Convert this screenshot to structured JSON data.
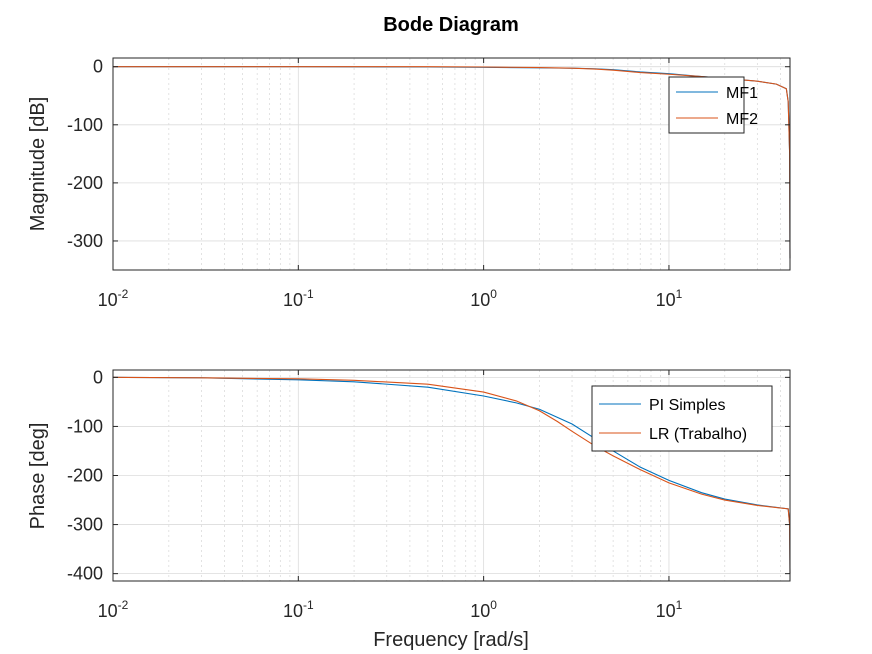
{
  "title": "Bode Diagram",
  "colors": {
    "series1": "#0072BD",
    "series2": "#D95319",
    "grid": "#dcdcdc",
    "axis": "#262626"
  },
  "chart_data": [
    {
      "type": "line",
      "panel": "magnitude",
      "ylabel": "Magnitude [dB]",
      "xlabel": "",
      "xscale": "log",
      "xlim": [
        0.01,
        45
      ],
      "ylim": [
        -350,
        15
      ],
      "xticks": [
        {
          "base": "10",
          "exp": "-2",
          "value": 0.01
        },
        {
          "base": "10",
          "exp": "-1",
          "value": 0.1
        },
        {
          "base": "10",
          "exp": "0",
          "value": 1
        },
        {
          "base": "10",
          "exp": "1",
          "value": 10
        }
      ],
      "yticks": [
        0,
        -100,
        -200,
        -300
      ],
      "grid": true,
      "legend_position": "top-right",
      "series": [
        {
          "name": "MF1",
          "x": [
            0.01,
            0.1,
            0.5,
            1,
            2,
            3,
            4,
            5,
            7,
            10,
            15,
            20,
            30,
            38,
            43,
            44,
            44.8,
            45
          ],
          "y": [
            0,
            0,
            -0.5,
            -1,
            -2,
            -2.5,
            -3.5,
            -5,
            -9,
            -12,
            -17,
            -20,
            -25,
            -30,
            -38,
            -60,
            -150,
            -330
          ]
        },
        {
          "name": "MF2",
          "x": [
            0.01,
            0.1,
            0.5,
            1,
            2,
            3,
            4,
            5,
            7,
            10,
            15,
            20,
            30,
            38,
            43,
            44,
            44.8,
            45
          ],
          "y": [
            0,
            0,
            0,
            -0.5,
            -1.5,
            -2.5,
            -4,
            -6,
            -10,
            -13,
            -17,
            -20,
            -25,
            -30,
            -38,
            -60,
            -150,
            -330
          ]
        }
      ]
    },
    {
      "type": "line",
      "panel": "phase",
      "ylabel": "Phase [deg]",
      "xlabel": "Frequency [rad/s]",
      "xscale": "log",
      "xlim": [
        0.01,
        45
      ],
      "ylim": [
        -415,
        15
      ],
      "xticks": [
        {
          "base": "10",
          "exp": "-2",
          "value": 0.01
        },
        {
          "base": "10",
          "exp": "-1",
          "value": 0.1
        },
        {
          "base": "10",
          "exp": "0",
          "value": 1
        },
        {
          "base": "10",
          "exp": "1",
          "value": 10
        }
      ],
      "yticks": [
        0,
        -100,
        -200,
        -300,
        -400
      ],
      "grid": true,
      "legend_position": "top-right",
      "series": [
        {
          "name": "PI Simples",
          "x": [
            0.01,
            0.03,
            0.1,
            0.2,
            0.5,
            1,
            1.5,
            2,
            3,
            4,
            5,
            7,
            10,
            15,
            20,
            30,
            44,
            44.8,
            45
          ],
          "y": [
            0,
            -1,
            -5,
            -9,
            -20,
            -38,
            -52,
            -65,
            -95,
            -125,
            -150,
            -183,
            -210,
            -235,
            -248,
            -260,
            -268,
            -300,
            -400
          ]
        },
        {
          "name": "LR (Trabalho)",
          "x": [
            0.01,
            0.03,
            0.1,
            0.2,
            0.5,
            1,
            1.5,
            2,
            2.5,
            3,
            4,
            5,
            7,
            10,
            15,
            20,
            30,
            44,
            44.8,
            45
          ],
          "y": [
            0,
            -1,
            -3,
            -6,
            -14,
            -30,
            -48,
            -68,
            -90,
            -110,
            -140,
            -160,
            -188,
            -215,
            -238,
            -250,
            -261,
            -268,
            -300,
            -400
          ]
        }
      ]
    }
  ]
}
